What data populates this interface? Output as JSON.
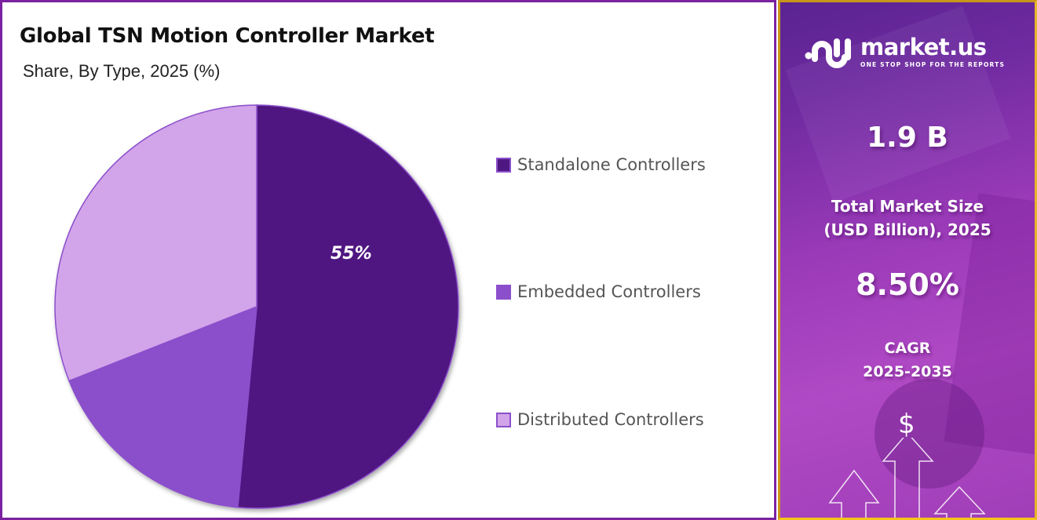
{
  "left_panel": {
    "title": "Global TSN Motion Controller Market",
    "subtitle": "Share, By Type, 2025 (%)"
  },
  "chart_data": {
    "type": "pie",
    "title": "Global TSN Motion Controller Market",
    "subtitle": "Share, By Type, 2025 (%)",
    "categories": [
      "Standalone Controllers",
      "Embedded Controllers",
      "Distributed Controllers"
    ],
    "values": [
      55,
      17.5,
      27.5
    ],
    "labeled_values": {
      "Standalone Controllers": "55%"
    },
    "colors": [
      "#4F1781",
      "#8B4FCB",
      "#D2A5EA"
    ],
    "start_angle": "top, clockwise",
    "legend_position": "right"
  },
  "pie": {
    "data_label": "55%"
  },
  "legend": {
    "items": [
      {
        "label": "Standalone Controllers",
        "color": "#4F1781"
      },
      {
        "label": "Embedded Controllers",
        "color": "#8B4FCB"
      },
      {
        "label": "Distributed Controllers",
        "color": "#D2A5EA"
      }
    ]
  },
  "right_panel": {
    "logo": {
      "name": "market.us",
      "tagline": "ONE STOP SHOP FOR THE REPORTS"
    },
    "market_size": {
      "value": "1.9 B",
      "label_line1": "Total Market Size",
      "label_line2": "(USD Billion), 2025"
    },
    "cagr": {
      "value": "8.50%",
      "label_line1": "CAGR",
      "label_line2": "2025-2035"
    },
    "icon_symbol": "$"
  },
  "colors": {
    "left_border": "#7B22A0",
    "right_border": "#C8961A",
    "accent_dark": "#4F1781"
  }
}
